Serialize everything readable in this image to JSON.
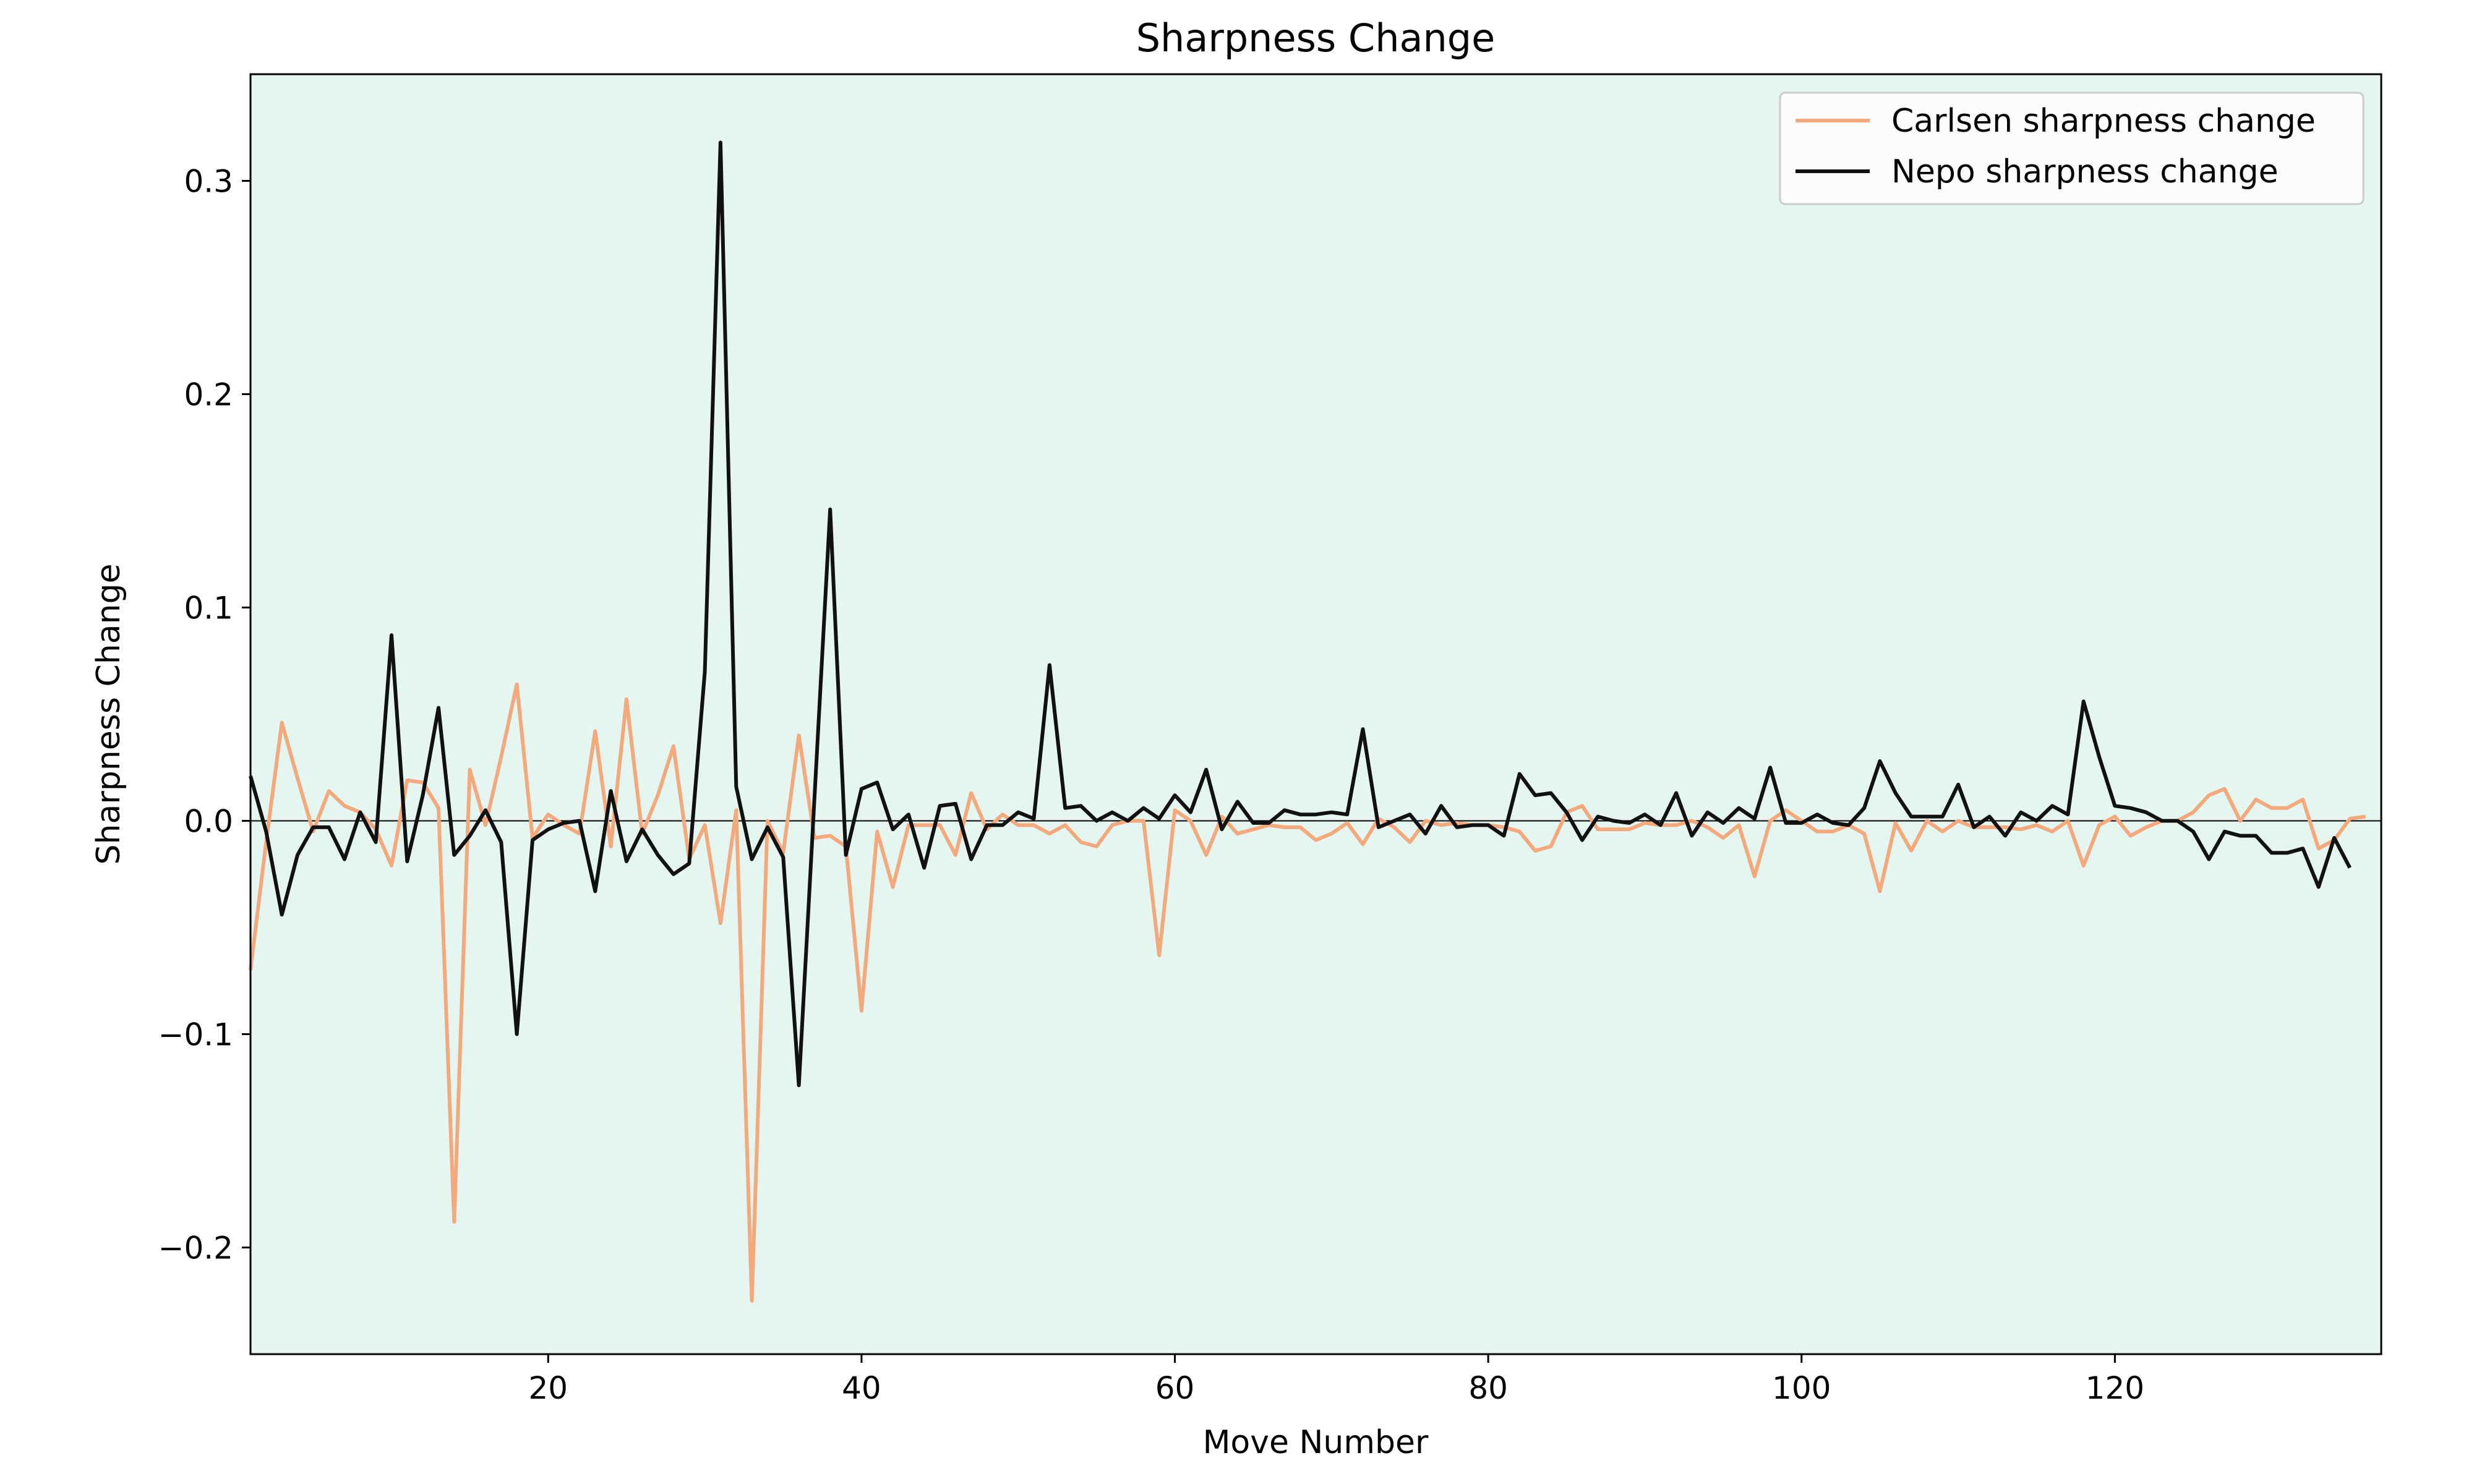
{
  "chart_data": {
    "type": "line",
    "title": "Sharpness Change",
    "xlabel": "Move Number",
    "ylabel": "Sharpness Change",
    "xlim": [
      1,
      137
    ],
    "ylim": [
      -0.25,
      0.35
    ],
    "xticks": [
      20,
      40,
      60,
      80,
      100,
      120
    ],
    "yticks": [
      -0.2,
      -0.1,
      0.0,
      0.1,
      0.2,
      0.3
    ],
    "ytick_labels": [
      "−0.2",
      "−0.1",
      "0.0",
      "0.1",
      "0.2",
      "0.3"
    ],
    "grid": false,
    "legend_position": "top-right",
    "background_color": "#e5f5ef",
    "zero_line": 0,
    "series": [
      {
        "name": "Carlsen sharpness change",
        "color": "#f4a97d",
        "x_start": 1,
        "values": [
          -0.07,
          -0.01,
          0.046,
          0.02,
          -0.005,
          0.014,
          0.007,
          0.004,
          -0.004,
          -0.021,
          0.019,
          0.018,
          0.006,
          -0.188,
          0.024,
          -0.002,
          0.03,
          0.064,
          -0.008,
          0.003,
          -0.002,
          -0.006,
          0.042,
          -0.012,
          0.057,
          -0.006,
          0.012,
          0.035,
          -0.018,
          -0.002,
          -0.048,
          0.005,
          -0.225,
          0.0,
          -0.015,
          0.04,
          -0.008,
          -0.007,
          -0.012,
          -0.089,
          -0.005,
          -0.031,
          -0.002,
          -0.002,
          -0.002,
          -0.016,
          0.013,
          -0.004,
          0.003,
          -0.002,
          -0.002,
          -0.006,
          -0.002,
          -0.01,
          -0.012,
          -0.002,
          0.0,
          0.0,
          -0.063,
          0.005,
          0.0,
          -0.016,
          0.002,
          -0.006,
          -0.004,
          -0.002,
          -0.003,
          -0.003,
          -0.009,
          -0.006,
          -0.001,
          -0.011,
          0.001,
          -0.003,
          -0.01,
          0.0,
          -0.002,
          -0.001,
          -0.002,
          -0.002,
          -0.003,
          -0.005,
          -0.014,
          -0.012,
          0.004,
          0.007,
          -0.004,
          -0.004,
          -0.004,
          -0.001,
          -0.002,
          -0.002,
          0.0,
          -0.003,
          -0.008,
          -0.002,
          -0.026,
          0.0,
          0.005,
          0.0,
          -0.005,
          -0.005,
          -0.002,
          -0.006,
          -0.033,
          -0.001,
          -0.014,
          0.0,
          -0.005,
          0.0,
          -0.003,
          -0.003,
          -0.003,
          -0.004,
          -0.002,
          -0.005,
          0.0,
          -0.021,
          -0.002,
          0.002,
          -0.007,
          -0.003,
          0.0,
          0.0,
          0.004,
          0.012,
          0.015,
          0.0,
          0.01,
          0.006,
          0.006,
          0.01,
          -0.013,
          -0.009,
          0.001,
          0.002
        ]
      },
      {
        "name": "Nepo sharpness change",
        "color": "#111111",
        "x_start": 1,
        "values": [
          0.021,
          -0.005,
          -0.044,
          -0.016,
          -0.003,
          -0.003,
          -0.018,
          0.004,
          -0.01,
          0.087,
          -0.019,
          0.012,
          0.053,
          -0.016,
          -0.007,
          0.005,
          -0.01,
          -0.1,
          -0.009,
          -0.004,
          -0.001,
          0.0,
          -0.033,
          0.014,
          -0.019,
          -0.004,
          -0.016,
          -0.025,
          -0.02,
          0.07,
          0.318,
          0.016,
          -0.018,
          -0.003,
          -0.017,
          -0.124,
          0.011,
          0.146,
          -0.016,
          0.015,
          0.018,
          -0.004,
          0.003,
          -0.022,
          0.007,
          0.008,
          -0.018,
          -0.002,
          -0.002,
          0.004,
          0.001,
          0.073,
          0.006,
          0.007,
          0.0,
          0.004,
          0.0,
          0.006,
          0.001,
          0.012,
          0.004,
          0.024,
          -0.004,
          0.009,
          -0.001,
          -0.001,
          0.005,
          0.003,
          0.003,
          0.004,
          0.003,
          0.043,
          -0.003,
          0.0,
          0.003,
          -0.006,
          0.007,
          -0.003,
          -0.002,
          -0.002,
          -0.007,
          0.022,
          0.012,
          0.013,
          0.004,
          -0.009,
          0.002,
          0.0,
          -0.001,
          0.003,
          -0.002,
          0.013,
          -0.007,
          0.004,
          -0.001,
          0.006,
          0.001,
          0.025,
          -0.001,
          -0.001,
          0.003,
          -0.001,
          -0.002,
          0.006,
          0.028,
          0.013,
          0.002,
          0.002,
          0.002,
          0.017,
          -0.003,
          0.002,
          -0.007,
          0.004,
          0.0,
          0.007,
          0.003,
          0.056,
          0.03,
          0.007,
          0.006,
          0.004,
          0.0,
          0.0,
          -0.005,
          -0.018,
          -0.005,
          -0.007,
          -0.007,
          -0.015,
          -0.015,
          -0.013,
          -0.031,
          -0.008,
          -0.022
        ]
      }
    ]
  }
}
